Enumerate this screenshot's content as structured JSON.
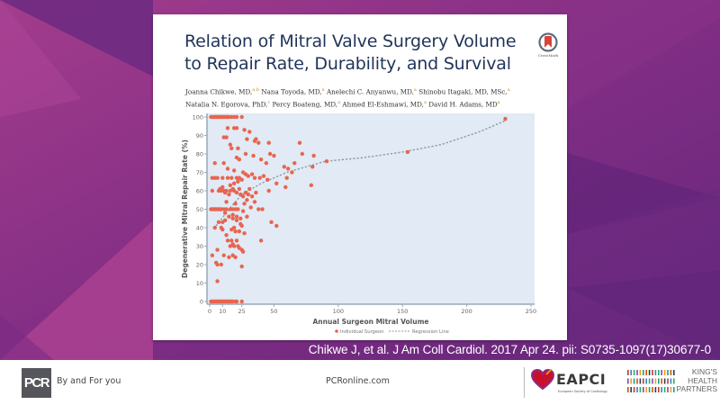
{
  "slide": {
    "background_colors": {
      "magenta": "#a63a8c",
      "purple": "#6a2a80",
      "dark_purple": "#5c2577"
    }
  },
  "article": {
    "title_line1": "Relation of Mitral Valve Surgery Volume",
    "title_line2": "to Repair Rate, Durability, and Survival",
    "authors": [
      {
        "name": "Joanna Chikwe, MD,",
        "sup": "a,b"
      },
      {
        "name": "Nana Toyoda, MD,",
        "sup": "a"
      },
      {
        "name": "Anelechi C. Anyanwu, MD,",
        "sup": "a"
      },
      {
        "name": "Shinobu Itagaki, MD, MSc,",
        "sup": "a"
      },
      {
        "name": "Natalia N. Egorova, PhD,",
        "sup": "c"
      },
      {
        "name": "Percy Boateng, MD,",
        "sup": "a"
      },
      {
        "name": "Ahmed El-Eshmawi, MD,",
        "sup": "a"
      },
      {
        "name": "David H. Adams, MD",
        "sup": "a"
      }
    ],
    "crossmark_label": "CrossMark",
    "title_color": "#1f3459"
  },
  "citation": "Chikwe J, et al. J Am Coll Cardiol. 2017 Apr 24. pii: S0735-1097(17)30677-0",
  "footer": {
    "logo_text": "PCR",
    "tagline": "By and For you",
    "site": "PCRonline.com",
    "eapci_label": "EAPCI",
    "esc_label": "European Society of Cardiology",
    "khp_lines": [
      "KING'S",
      "HEALTH",
      "PARTNERS"
    ]
  },
  "chart_data": {
    "type": "scatter",
    "title": "",
    "xlabel": "Annual Surgeon Mitral Volume",
    "ylabel": "Degenerative Mitral Repair Rate (%)",
    "xlim": [
      0,
      250
    ],
    "ylim": [
      0,
      100
    ],
    "xticks": [
      0,
      10,
      25,
      50,
      100,
      150,
      200,
      250
    ],
    "yticks": [
      0,
      10,
      20,
      30,
      40,
      50,
      60,
      70,
      80,
      90,
      100
    ],
    "grid": false,
    "background": "#e1eaf5",
    "point_color": "#e8654f",
    "line_color": "#8a9aa8",
    "legend": {
      "placement": "bottom",
      "entries": [
        "Individual Surgeon",
        "Regression Line"
      ]
    },
    "series": [
      {
        "name": "Individual Surgeon",
        "points": [
          [
            1,
            100
          ],
          [
            2,
            100
          ],
          [
            3,
            100
          ],
          [
            4,
            100
          ],
          [
            5,
            100
          ],
          [
            6,
            100
          ],
          [
            7,
            100
          ],
          [
            8,
            100
          ],
          [
            9,
            100
          ],
          [
            10,
            100
          ],
          [
            11,
            100
          ],
          [
            12,
            100
          ],
          [
            13,
            100
          ],
          [
            14,
            100
          ],
          [
            15,
            100
          ],
          [
            17,
            100
          ],
          [
            19,
            100
          ],
          [
            21,
            100
          ],
          [
            25,
            100
          ],
          [
            14,
            94
          ],
          [
            19,
            94
          ],
          [
            21,
            94
          ],
          [
            27,
            93
          ],
          [
            31,
            92
          ],
          [
            11,
            89
          ],
          [
            13,
            89
          ],
          [
            16,
            85
          ],
          [
            29,
            88
          ],
          [
            36,
            88
          ],
          [
            38,
            86
          ],
          [
            17,
            83
          ],
          [
            22,
            83
          ],
          [
            46,
            86
          ],
          [
            47,
            80
          ],
          [
            50,
            79
          ],
          [
            35,
            87
          ],
          [
            28,
            80
          ],
          [
            34,
            79
          ],
          [
            21,
            78
          ],
          [
            23,
            77
          ],
          [
            40,
            77
          ],
          [
            44,
            75
          ],
          [
            4,
            75
          ],
          [
            11,
            75
          ],
          [
            14,
            72
          ],
          [
            19,
            71
          ],
          [
            26,
            70
          ],
          [
            28,
            69
          ],
          [
            30,
            68
          ],
          [
            33,
            69
          ],
          [
            35,
            67
          ],
          [
            39,
            67
          ],
          [
            42,
            68
          ],
          [
            45,
            66
          ],
          [
            61,
            72
          ],
          [
            59,
            62
          ],
          [
            46,
            60
          ],
          [
            36,
            59
          ],
          [
            2,
            67
          ],
          [
            4,
            67
          ],
          [
            6,
            67
          ],
          [
            10,
            67
          ],
          [
            14,
            67
          ],
          [
            17,
            67
          ],
          [
            21,
            67
          ],
          [
            23,
            67
          ],
          [
            25,
            66
          ],
          [
            22,
            65
          ],
          [
            19,
            64
          ],
          [
            16,
            63
          ],
          [
            2,
            60
          ],
          [
            7,
            60
          ],
          [
            9,
            60
          ],
          [
            11,
            60
          ],
          [
            13,
            60
          ],
          [
            16,
            60
          ],
          [
            19,
            60
          ],
          [
            21,
            59
          ],
          [
            24,
            58
          ],
          [
            26,
            57
          ],
          [
            28,
            59
          ],
          [
            30,
            58
          ],
          [
            8,
            61
          ],
          [
            10,
            62
          ],
          [
            12,
            59
          ],
          [
            15,
            58
          ],
          [
            18,
            61
          ],
          [
            23,
            61
          ],
          [
            31,
            61
          ],
          [
            33,
            57
          ],
          [
            13,
            54
          ],
          [
            20,
            53
          ],
          [
            27,
            53
          ],
          [
            29,
            55
          ],
          [
            35,
            54
          ],
          [
            38,
            50
          ],
          [
            41,
            50
          ],
          [
            32,
            51
          ],
          [
            1,
            50
          ],
          [
            2,
            50
          ],
          [
            3,
            50
          ],
          [
            4,
            50
          ],
          [
            5,
            50
          ],
          [
            6,
            50
          ],
          [
            7,
            50
          ],
          [
            8,
            50
          ],
          [
            9,
            50
          ],
          [
            11,
            50
          ],
          [
            13,
            50
          ],
          [
            16,
            50
          ],
          [
            18,
            50
          ],
          [
            20,
            50
          ],
          [
            22,
            50
          ],
          [
            12,
            48
          ],
          [
            18,
            47
          ],
          [
            21,
            46
          ],
          [
            24,
            45
          ],
          [
            26,
            49
          ],
          [
            29,
            46
          ],
          [
            7,
            43
          ],
          [
            10,
            43
          ],
          [
            12,
            44
          ],
          [
            15,
            46
          ],
          [
            18,
            45
          ],
          [
            21,
            44
          ],
          [
            24,
            42
          ],
          [
            4,
            40
          ],
          [
            9,
            40
          ],
          [
            10,
            39
          ],
          [
            17,
            39
          ],
          [
            19,
            40
          ],
          [
            20,
            38
          ],
          [
            23,
            38
          ],
          [
            25,
            41
          ],
          [
            27,
            37
          ],
          [
            48,
            43
          ],
          [
            52,
            41
          ],
          [
            40,
            33
          ],
          [
            13,
            36
          ],
          [
            14,
            33
          ],
          [
            17,
            33
          ],
          [
            18,
            31
          ],
          [
            16,
            30
          ],
          [
            19,
            30
          ],
          [
            21,
            33
          ],
          [
            22,
            30
          ],
          [
            23,
            29
          ],
          [
            25,
            28
          ],
          [
            26,
            27
          ],
          [
            6,
            28
          ],
          [
            2,
            25
          ],
          [
            11,
            25
          ],
          [
            15,
            24
          ],
          [
            18,
            25
          ],
          [
            20,
            24
          ],
          [
            5,
            21
          ],
          [
            6,
            20
          ],
          [
            9,
            20
          ],
          [
            25,
            19
          ],
          [
            6,
            11
          ],
          [
            1,
            0
          ],
          [
            2,
            0
          ],
          [
            3,
            0
          ],
          [
            4,
            0
          ],
          [
            5,
            0
          ],
          [
            6,
            0
          ],
          [
            7,
            0
          ],
          [
            8,
            0
          ],
          [
            9,
            0
          ],
          [
            10,
            0
          ],
          [
            11,
            0
          ],
          [
            12,
            0
          ],
          [
            13,
            0
          ],
          [
            14,
            0
          ],
          [
            15,
            0
          ],
          [
            16,
            0
          ],
          [
            17,
            0
          ],
          [
            18,
            0
          ],
          [
            20,
            0
          ],
          [
            21,
            0
          ],
          [
            25,
            0
          ],
          [
            70,
            86
          ],
          [
            72,
            80
          ],
          [
            81,
            79
          ],
          [
            80,
            73
          ],
          [
            91,
            76
          ],
          [
            79,
            63
          ],
          [
            58,
            73
          ],
          [
            60,
            67
          ],
          [
            64,
            70
          ],
          [
            66,
            75
          ],
          [
            52,
            64
          ],
          [
            154,
            81
          ],
          [
            230,
            99
          ]
        ]
      },
      {
        "name": "Regression Line",
        "points": [
          [
            5,
            41
          ],
          [
            15,
            50
          ],
          [
            25,
            58
          ],
          [
            40,
            64
          ],
          [
            60,
            70
          ],
          [
            90,
            76
          ],
          [
            120,
            78
          ],
          [
            150,
            81
          ],
          [
            180,
            85
          ],
          [
            210,
            92
          ],
          [
            230,
            98
          ]
        ]
      }
    ]
  }
}
